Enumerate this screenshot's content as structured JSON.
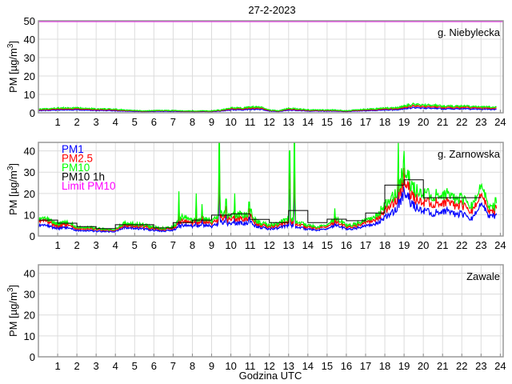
{
  "chart_data": {
    "type": "line",
    "title": "27-2-2023",
    "xlabel": "Godzina UTC",
    "xlim": [
      0,
      24.15
    ],
    "x_ticks": [
      "1",
      "2",
      "3",
      "4",
      "5",
      "6",
      "7",
      "8",
      "9",
      "10",
      "11",
      "12",
      "13",
      "14",
      "15",
      "16",
      "17",
      "18",
      "19",
      "20",
      "21",
      "22",
      "23",
      "24"
    ],
    "ylabel": {
      "prefix": "PM [µg/m",
      "sup": "3",
      "suffix": "]"
    },
    "legend": [
      {
        "label": "PM1",
        "color": "#0000ff"
      },
      {
        "label": "PM2.5",
        "color": "#ff0000"
      },
      {
        "label": "PM10",
        "color": "#00ff00"
      },
      {
        "label": "PM10 1h",
        "color": "#000000"
      },
      {
        "label": "Limit PM10",
        "color": "#ff00ff"
      }
    ],
    "limit_pm10": 50,
    "series_resolution_hours": 0.5,
    "panels": [
      {
        "station": "g. Niebylecka",
        "ylim": [
          0,
          50
        ],
        "y_ticks": [
          "0",
          "10",
          "20",
          "30",
          "40",
          "50"
        ],
        "pm10": [
          2,
          2,
          2.5,
          2.5,
          2.5,
          2.5,
          2,
          2,
          1.8,
          1.5,
          1.2,
          1,
          1.2,
          1.2,
          1.2,
          1,
          1,
          1,
          1,
          1.5,
          2.5,
          2.5,
          3,
          3,
          1.5,
          1,
          2.5,
          2,
          1.5,
          1.5,
          1.5,
          1.5,
          1,
          1.5,
          2,
          2,
          2.5,
          2.5,
          3.5,
          4.5,
          4,
          4,
          3.5,
          3.5,
          3.5,
          3.2,
          3,
          3
        ],
        "pm25": [
          1.6,
          1.6,
          2,
          2,
          2,
          2,
          1.6,
          1.6,
          1.4,
          1.2,
          1,
          0.8,
          1,
          1,
          1,
          0.8,
          0.8,
          0.8,
          0.8,
          1.2,
          2,
          2,
          2.4,
          2.4,
          1.2,
          0.8,
          2,
          1.6,
          1.2,
          1.2,
          1.2,
          1.2,
          0.8,
          1.2,
          1.6,
          1.6,
          2,
          2,
          2.8,
          3.6,
          3.2,
          3.2,
          2.8,
          2.8,
          2.8,
          2.6,
          2.4,
          2.4
        ],
        "pm1": [
          1.2,
          1.2,
          1.5,
          1.5,
          1.5,
          1.5,
          1.2,
          1.2,
          1,
          0.9,
          0.7,
          0.6,
          0.7,
          0.7,
          0.7,
          0.6,
          0.6,
          0.6,
          0.6,
          0.9,
          1.5,
          1.5,
          1.8,
          1.8,
          0.9,
          0.6,
          1.5,
          1.2,
          0.9,
          0.9,
          0.9,
          0.9,
          0.6,
          0.9,
          1.2,
          1.2,
          1.5,
          1.5,
          2.1,
          2.7,
          2.4,
          2.4,
          2.1,
          2.1,
          2.1,
          1.9,
          1.8,
          1.8
        ],
        "pm10_spikes": [],
        "pm10_1h": []
      },
      {
        "station": "g. Zarnowska",
        "ylim": [
          0,
          44
        ],
        "y_ticks": [
          "0",
          "10",
          "20",
          "30",
          "40"
        ],
        "pm10": [
          8,
          7.5,
          5.5,
          6.5,
          4,
          4,
          3.5,
          3,
          3,
          6,
          5.5,
          5,
          4,
          3.5,
          4,
          9,
          7,
          8,
          7,
          10,
          9,
          10,
          9,
          6,
          5,
          6,
          8,
          6,
          5,
          4,
          5,
          8,
          5,
          5.5,
          7,
          9,
          14,
          18,
          30,
          22,
          20,
          18,
          20,
          17,
          17,
          14,
          22,
          13
        ],
        "pm25": [
          7,
          6.5,
          4.5,
          5.5,
          3.3,
          3.3,
          3,
          2.6,
          2.6,
          5,
          4.6,
          4.2,
          3.4,
          3,
          3.4,
          7,
          6,
          6.5,
          6,
          8,
          7.5,
          8,
          7.5,
          5,
          4.2,
          5,
          6.5,
          5,
          4.2,
          3.4,
          4.2,
          6.5,
          4.2,
          4.6,
          6,
          7.5,
          11.5,
          15,
          25,
          18,
          16,
          14.5,
          16,
          14,
          14,
          11.5,
          18,
          11
        ],
        "pm1": [
          5,
          4.5,
          3.5,
          4,
          2.5,
          2.5,
          2.2,
          2,
          2,
          4,
          3.6,
          3.2,
          2.6,
          2.3,
          2.6,
          5,
          4.5,
          5,
          4.5,
          6,
          5.5,
          6,
          5.5,
          4,
          3.2,
          3.8,
          5,
          3.8,
          3.2,
          2.6,
          3.2,
          5,
          3.2,
          3.5,
          4.5,
          5.5,
          8.5,
          11,
          20,
          14,
          12,
          10,
          12,
          10,
          10,
          8,
          14,
          9
        ],
        "pm10_spikes": [
          [
            7.3,
            21
          ],
          [
            8.2,
            20
          ],
          [
            8.5,
            15
          ],
          [
            9.4,
            60
          ],
          [
            9.75,
            26
          ],
          [
            10.2,
            20
          ],
          [
            10.95,
            24
          ],
          [
            11.05,
            19
          ],
          [
            13.05,
            60
          ],
          [
            13.3,
            60
          ],
          [
            15.4,
            13
          ],
          [
            18.7,
            45
          ],
          [
            19.0,
            40
          ],
          [
            23.75,
            27
          ]
        ],
        "pm10_1h": [
          7.5,
          6,
          4.4,
          3.5,
          5.3,
          5.3,
          3.8,
          6.3,
          7.5,
          9.8,
          10.4,
          7.8,
          6.3,
          12,
          6.3,
          7.9,
          7.2,
          10.8,
          23.9,
          26.4,
          18,
          18,
          18
        ]
      },
      {
        "station": "Zawale",
        "ylim": [
          0,
          44
        ],
        "y_ticks": [
          "0",
          "10",
          "20",
          "30",
          "40"
        ],
        "pm10": [],
        "pm25": [],
        "pm1": [],
        "pm10_spikes": [],
        "pm10_1h": []
      }
    ]
  }
}
